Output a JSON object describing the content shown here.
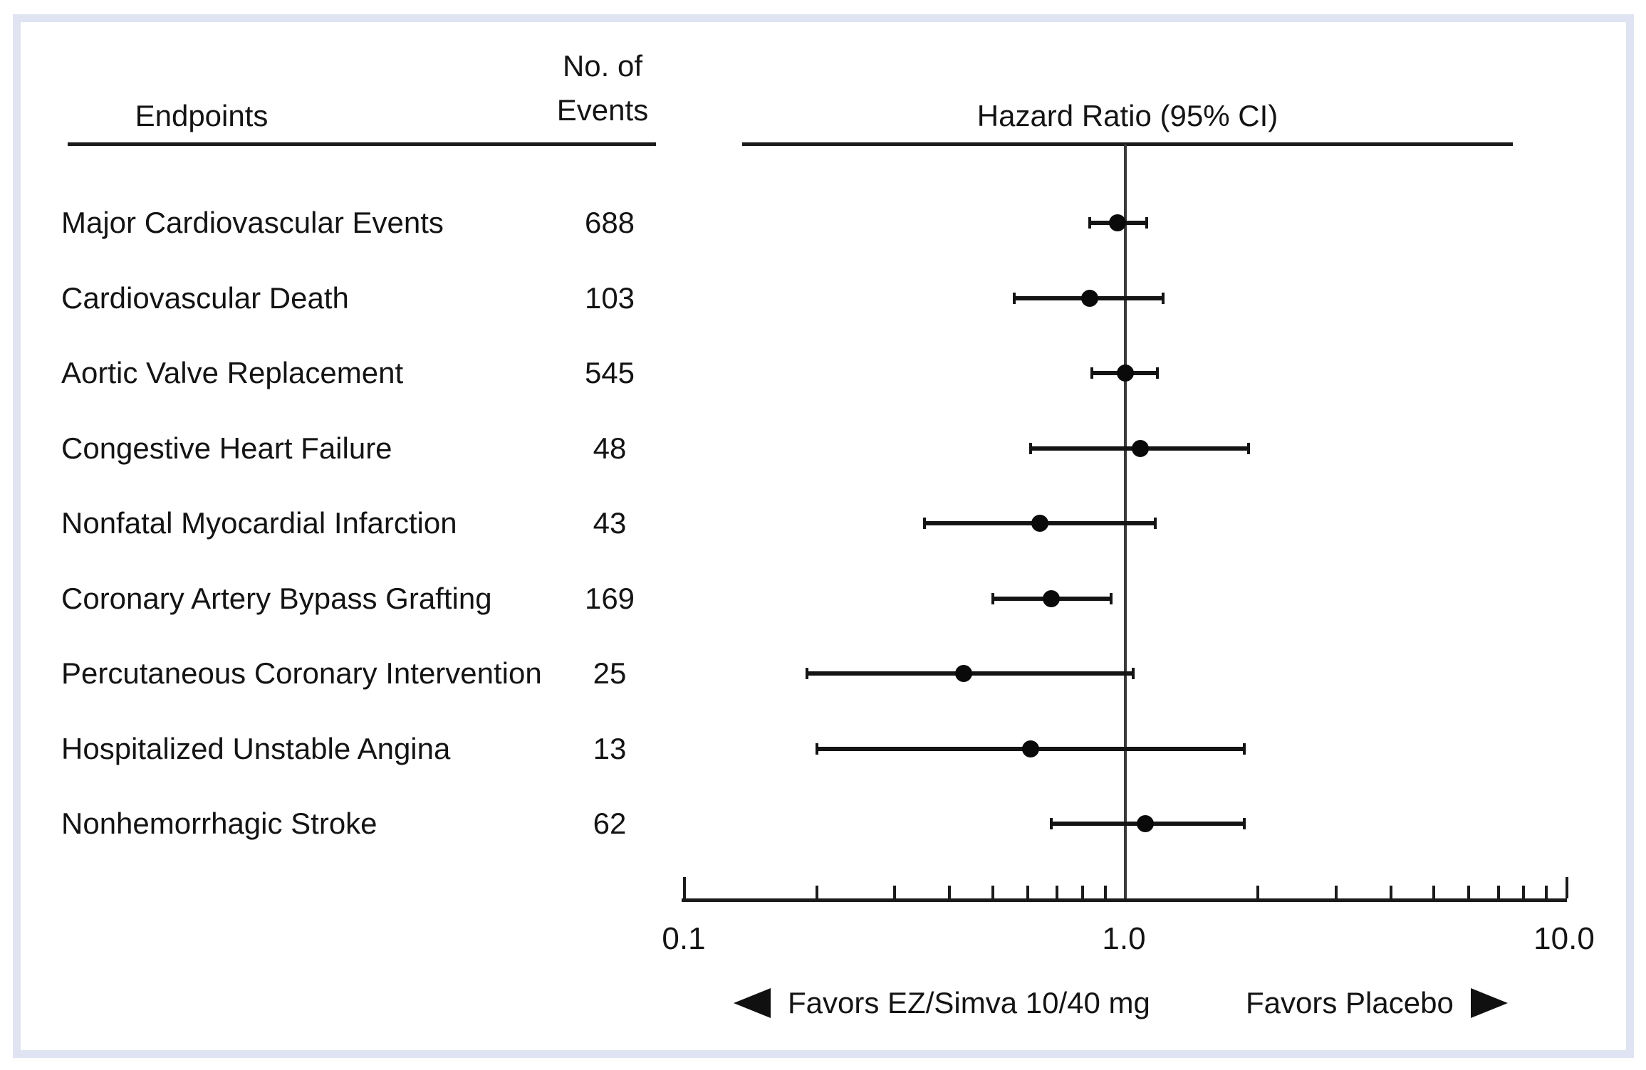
{
  "table": {
    "endpoints_header": "Endpoints",
    "events_header_line1": "No. of",
    "events_header_line2": "Events"
  },
  "axis": {
    "tick_labels": [
      "0.1",
      "1.0",
      "10.0"
    ]
  },
  "colors": {
    "frame_border": "#dfe3f2",
    "ink": "#141414"
  },
  "chart_data": {
    "type": "scatter",
    "subtype": "forest-plot",
    "title": "Hazard Ratio (95% CI)",
    "x_scale": "log",
    "xlim": [
      0.1,
      10.0
    ],
    "x_major_ticks": [
      0.1,
      1.0,
      10.0
    ],
    "x_minor_ticks": [
      0.2,
      0.3,
      0.4,
      0.5,
      0.6,
      0.7,
      0.8,
      0.9,
      2,
      3,
      4,
      5,
      6,
      7,
      8,
      9
    ],
    "reference_line_x": 1.0,
    "grid": false,
    "legend": "none",
    "columns": [
      "Endpoints",
      "No. of Events",
      "Hazard Ratio (95% CI)"
    ],
    "rows": [
      {
        "endpoint": "Major Cardiovascular Events",
        "events": 688,
        "hr": 0.96,
        "ci_low": 0.83,
        "ci_high": 1.12
      },
      {
        "endpoint": "Cardiovascular Death",
        "events": 103,
        "hr": 0.83,
        "ci_low": 0.56,
        "ci_high": 1.22
      },
      {
        "endpoint": "Aortic Valve Replacement",
        "events": 545,
        "hr": 1.0,
        "ci_low": 0.84,
        "ci_high": 1.18
      },
      {
        "endpoint": "Congestive Heart Failure",
        "events": 48,
        "hr": 1.08,
        "ci_low": 0.61,
        "ci_high": 1.9
      },
      {
        "endpoint": "Nonfatal Myocardial Infarction",
        "events": 43,
        "hr": 0.64,
        "ci_low": 0.35,
        "ci_high": 1.17
      },
      {
        "endpoint": "Coronary Artery Bypass Grafting",
        "events": 169,
        "hr": 0.68,
        "ci_low": 0.5,
        "ci_high": 0.93
      },
      {
        "endpoint": "Percutaneous Coronary Intervention",
        "events": 25,
        "hr": 0.43,
        "ci_low": 0.19,
        "ci_high": 1.04
      },
      {
        "endpoint": "Hospitalized Unstable Angina",
        "events": 13,
        "hr": 0.61,
        "ci_low": 0.2,
        "ci_high": 1.86
      },
      {
        "endpoint": "Nonhemorrhagic Stroke",
        "events": 62,
        "hr": 1.11,
        "ci_low": 0.68,
        "ci_high": 1.86
      }
    ],
    "annotations": {
      "favors_left": "Favors EZ/Simva 10/40 mg",
      "favors_right": "Favors Placebo"
    }
  }
}
